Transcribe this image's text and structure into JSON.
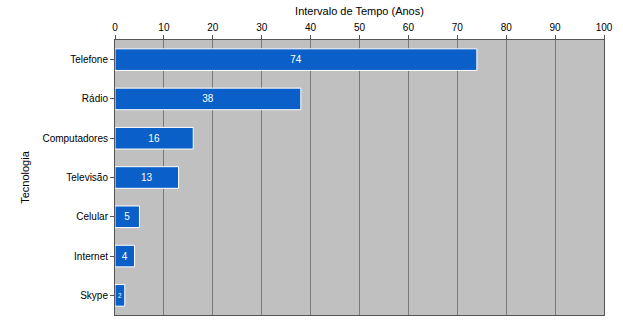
{
  "chart_data": {
    "type": "bar",
    "orientation": "horizontal",
    "x_label": "Intervalo de Tempo (Anos)",
    "y_label": "Tecnologia",
    "categories": [
      "Telefone",
      "Rádio",
      "Computadores",
      "Televisão",
      "Celular",
      "Internet",
      "Skype"
    ],
    "values": [
      74,
      38,
      16,
      13,
      5,
      4,
      2
    ],
    "color": "#0a5fc8",
    "xlim": [
      0,
      100
    ],
    "xticks": [
      0,
      10,
      20,
      30,
      40,
      50,
      60,
      70,
      80,
      90,
      100
    ],
    "grid": true,
    "data_labels": true
  }
}
